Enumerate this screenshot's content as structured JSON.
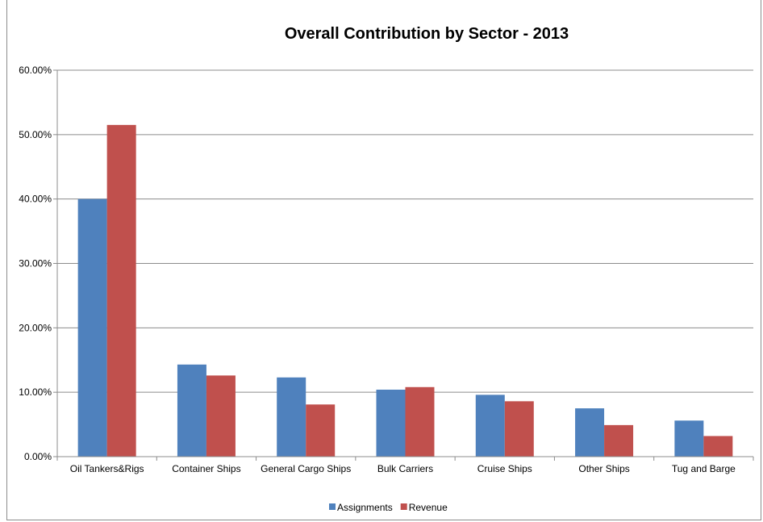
{
  "chart_data": {
    "type": "bar",
    "title": "Overall Contribution by Sector - 2013",
    "xlabel": "",
    "ylabel": "",
    "categories": [
      "Oil Tankers&Rigs",
      "Container Ships",
      "General Cargo Ships",
      "Bulk Carriers",
      "Cruise Ships",
      "Other Ships",
      "Tug and Barge"
    ],
    "series": [
      {
        "name": "Assignments",
        "color": "#4f81bd",
        "values": [
          40.0,
          14.3,
          12.3,
          10.4,
          9.6,
          7.5,
          5.6
        ]
      },
      {
        "name": "Revenue",
        "color": "#c0504d",
        "values": [
          51.5,
          12.6,
          8.1,
          10.8,
          8.6,
          4.9,
          3.2
        ]
      }
    ],
    "ylim": [
      0,
      60
    ],
    "yticks": [
      0,
      10,
      20,
      30,
      40,
      50,
      60
    ],
    "ytick_labels": [
      "0.00%",
      "10.00%",
      "20.00%",
      "30.00%",
      "40.00%",
      "50.00%",
      "60.00%"
    ],
    "grid": true,
    "legend_position": "bottom"
  }
}
